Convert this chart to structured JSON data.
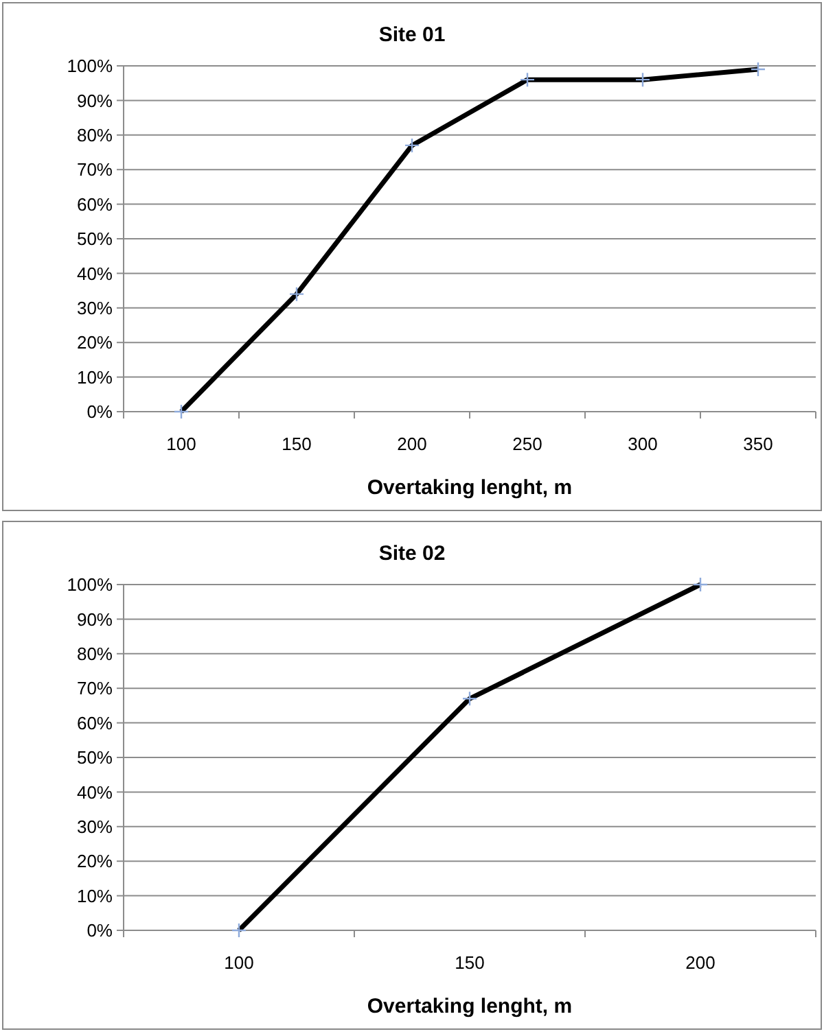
{
  "chart_data": [
    {
      "type": "line",
      "title": "Site 01",
      "xlabel": "Overtaking lenght, m",
      "categories": [
        "100",
        "150",
        "200",
        "250",
        "300",
        "350"
      ],
      "series": [
        {
          "color": "#000000",
          "values": [
            0,
            34,
            77,
            96,
            96,
            99
          ]
        }
      ],
      "ylim": [
        0,
        100
      ],
      "yticks": [
        {
          "value": 0,
          "label": "0%"
        },
        {
          "value": 10,
          "label": "10%"
        },
        {
          "value": 20,
          "label": "20%"
        },
        {
          "value": 30,
          "label": "30%"
        },
        {
          "value": 40,
          "label": "40%"
        },
        {
          "value": 50,
          "label": "50%"
        },
        {
          "value": 60,
          "label": "60%"
        },
        {
          "value": 70,
          "label": "70%"
        },
        {
          "value": 80,
          "label": "80%"
        },
        {
          "value": 90,
          "label": "90%"
        },
        {
          "value": 100,
          "label": "100%"
        }
      ],
      "grid": "y",
      "marker": "cross",
      "line_style": "solid"
    },
    {
      "type": "line",
      "title": "Site 02",
      "xlabel": "Overtaking lenght, m",
      "categories": [
        "100",
        "150",
        "200"
      ],
      "series": [
        {
          "color": "#000000",
          "values": [
            0,
            67,
            100
          ]
        }
      ],
      "ylim": [
        0,
        100
      ],
      "yticks": [
        {
          "value": 0,
          "label": "0%"
        },
        {
          "value": 10,
          "label": "10%"
        },
        {
          "value": 20,
          "label": "20%"
        },
        {
          "value": 30,
          "label": "30%"
        },
        {
          "value": 40,
          "label": "40%"
        },
        {
          "value": 50,
          "label": "50%"
        },
        {
          "value": 60,
          "label": "60%"
        },
        {
          "value": 70,
          "label": "70%"
        },
        {
          "value": 80,
          "label": "80%"
        },
        {
          "value": 90,
          "label": "90%"
        },
        {
          "value": 100,
          "label": "100%"
        }
      ],
      "grid": "y",
      "marker": "cross",
      "line_style": "solid"
    }
  ]
}
